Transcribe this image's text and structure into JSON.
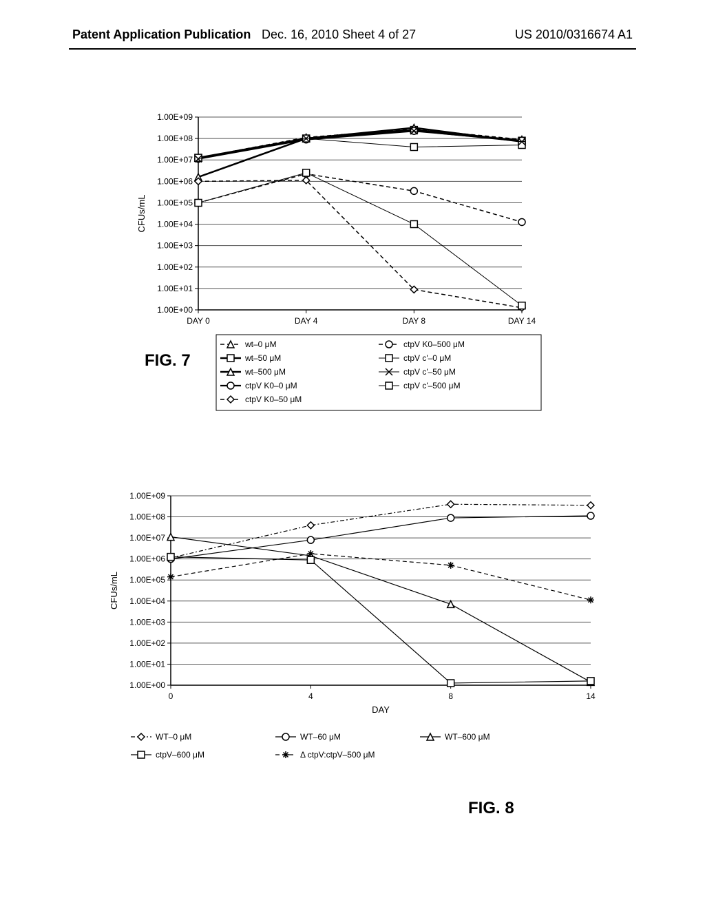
{
  "header": {
    "left": "Patent Application Publication",
    "center": "Dec. 16, 2010  Sheet 4 of 27",
    "right": "US 2010/0316674 A1"
  },
  "fig7": {
    "label": "FIG. 7",
    "type": "line",
    "xlabel": "",
    "ylabel": "CFUs/mL",
    "x_categories": [
      "DAY 0",
      "DAY 4",
      "DAY 8",
      "DAY 14"
    ],
    "y_ticks": [
      "1.00E+00",
      "1.00E+01",
      "1.00E+02",
      "1.00E+03",
      "1.00E+04",
      "1.00E+05",
      "1.00E+06",
      "1.00E+07",
      "1.00E+08",
      "1.00E+09"
    ],
    "ylim_logexp": [
      0,
      9
    ],
    "background_color": "#ffffff",
    "grid_color": "#555555",
    "axis_color": "#000000",
    "tick_fontsize": 12,
    "label_fontsize": 13,
    "legend_fontsize": 12,
    "series": [
      {
        "name": "wt–0 μM",
        "marker": "triangle",
        "color": "#000000",
        "dash": "6,4",
        "weight": 1.5,
        "y_logexp": [
          7.1,
          8.05,
          8.45,
          7.95
        ]
      },
      {
        "name": "wt–50 μM",
        "marker": "square",
        "color": "#000000",
        "dash": "",
        "weight": 2.5,
        "y_logexp": [
          7.1,
          8.0,
          8.4,
          7.9
        ]
      },
      {
        "name": "wt–500 μM",
        "marker": "triangle",
        "color": "#000000",
        "dash": "",
        "weight": 2.5,
        "y_logexp": [
          6.2,
          8.0,
          8.5,
          7.85
        ]
      },
      {
        "name": "ctpV K0–0 μM",
        "marker": "circle",
        "color": "#000000",
        "dash": "",
        "weight": 2.2,
        "y_logexp": [
          7.05,
          7.95,
          8.35,
          7.9
        ]
      },
      {
        "name": "ctpV K0–50 μM",
        "marker": "diamond",
        "color": "#000000",
        "dash": "6,4",
        "weight": 1.5,
        "y_logexp": [
          6.0,
          6.05,
          0.95,
          0.1
        ]
      },
      {
        "name": "ctpV K0–500 μM",
        "marker": "circle",
        "color": "#000000",
        "dash": "6,4",
        "weight": 1.5,
        "y_logexp": [
          5.0,
          6.35,
          5.55,
          4.1
        ]
      },
      {
        "name": "ctpV c'–0 μM",
        "marker": "square",
        "color": "#000000",
        "dash": "",
        "weight": 1.0,
        "y_logexp": [
          7.1,
          8.0,
          7.6,
          7.7
        ]
      },
      {
        "name": "ctpV c'–50 μM",
        "marker": "x",
        "color": "#000000",
        "dash": "",
        "weight": 1.0,
        "y_logexp": [
          7.05,
          8.0,
          8.35,
          7.85
        ]
      },
      {
        "name": "ctpV c'–500 μM",
        "marker": "square",
        "color": "#000000",
        "dash": "",
        "weight": 1.0,
        "y_logexp": [
          5.0,
          6.4,
          4.0,
          0.2
        ]
      }
    ],
    "legend_columns": 2
  },
  "fig8": {
    "label": "FIG. 8",
    "type": "line",
    "xlabel": "DAY",
    "ylabel": "CFUs/mL",
    "x_categories": [
      "0",
      "4",
      "8",
      "14"
    ],
    "y_ticks": [
      "1.00E+00",
      "1.00E+01",
      "1.00E+02",
      "1.00E+03",
      "1.00E+04",
      "1.00E+05",
      "1.00E+06",
      "1.00E+07",
      "1.00E+08",
      "1.00E+09"
    ],
    "ylim_logexp": [
      0,
      9
    ],
    "background_color": "#ffffff",
    "grid_color": "#555555",
    "axis_color": "#000000",
    "tick_fontsize": 12,
    "label_fontsize": 13,
    "legend_fontsize": 12,
    "series": [
      {
        "name": "WT–0 μM",
        "marker": "diamond",
        "color": "#000000",
        "dash": "6,3,2,3",
        "weight": 1.2,
        "y_logexp": [
          6.05,
          7.6,
          8.6,
          8.55
        ]
      },
      {
        "name": "WT–60 μM",
        "marker": "circle",
        "color": "#000000",
        "dash": "",
        "weight": 1.2,
        "y_logexp": [
          6.0,
          6.9,
          7.95,
          8.05
        ]
      },
      {
        "name": "WT–600 μM",
        "marker": "triangle",
        "color": "#000000",
        "dash": "",
        "weight": 1.2,
        "y_logexp": [
          7.05,
          6.15,
          3.85,
          0.15
        ]
      },
      {
        "name": "ctpV–600 μM",
        "marker": "square",
        "color": "#000000",
        "dash": "",
        "weight": 1.2,
        "y_logexp": [
          6.1,
          5.95,
          0.1,
          0.2
        ]
      },
      {
        "name": "Δ ctpV:ctpV–500 μM",
        "marker": "asterisk",
        "color": "#000000",
        "dash": "6,4",
        "weight": 1.2,
        "y_logexp": [
          5.15,
          6.25,
          5.7,
          4.05
        ]
      }
    ],
    "legend_columns": 3
  }
}
